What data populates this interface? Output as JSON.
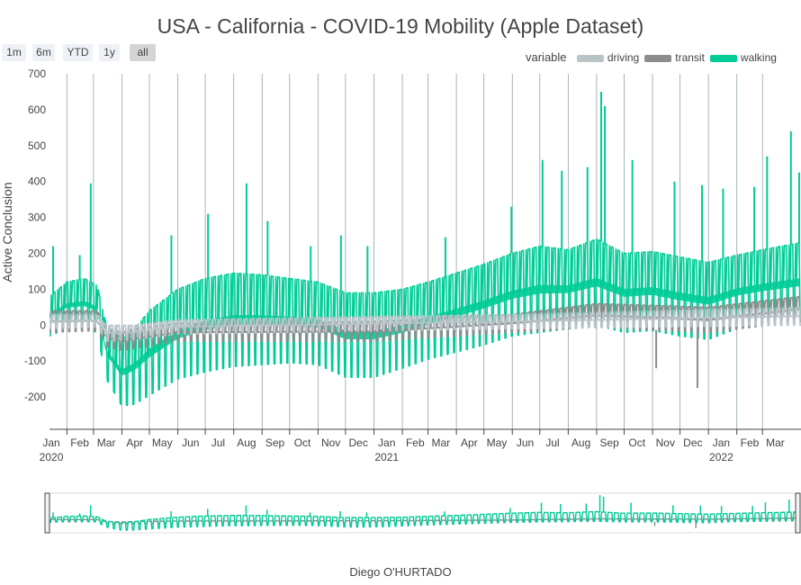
{
  "title": "USA - California - COVID-19 Mobility (Apple Dataset)",
  "range_selector": {
    "buttons": [
      "1m",
      "6m",
      "YTD",
      "1y",
      "all"
    ],
    "active": "all"
  },
  "legend": {
    "title": "variable",
    "items": [
      {
        "name": "driving",
        "color": "#b9c3c8"
      },
      {
        "name": "transit",
        "color": "#8c8c8c"
      },
      {
        "name": "walking",
        "color": "#00cc96"
      }
    ]
  },
  "caption": "Diego O'HURTADO",
  "chart_data": {
    "type": "area",
    "title": "USA - California - COVID-19 Mobility (Apple Dataset)",
    "ylabel": "Active Conclusion",
    "xlabel": "",
    "x_range": [
      "2020-01-13",
      "2022-04-12"
    ],
    "ylim": [
      -290,
      700
    ],
    "yticks": [
      -200,
      -100,
      0,
      100,
      200,
      300,
      400,
      500,
      600,
      700
    ],
    "xticks": [
      {
        "label": "Jan",
        "year": "2020",
        "date": "2020-01-15"
      },
      {
        "label": "Feb",
        "date": "2020-02-15"
      },
      {
        "label": "Mar",
        "date": "2020-03-15"
      },
      {
        "label": "Apr",
        "date": "2020-04-15"
      },
      {
        "label": "May",
        "date": "2020-05-15"
      },
      {
        "label": "Jun",
        "date": "2020-06-15"
      },
      {
        "label": "Jul",
        "date": "2020-07-15"
      },
      {
        "label": "Aug",
        "date": "2020-08-15"
      },
      {
        "label": "Sep",
        "date": "2020-09-15"
      },
      {
        "label": "Oct",
        "date": "2020-10-15"
      },
      {
        "label": "Nov",
        "date": "2020-11-15"
      },
      {
        "label": "Dec",
        "date": "2020-12-15"
      },
      {
        "label": "Jan",
        "year": "2021",
        "date": "2021-01-15"
      },
      {
        "label": "Feb",
        "date": "2021-02-15"
      },
      {
        "label": "Mar",
        "date": "2021-03-15"
      },
      {
        "label": "Apr",
        "date": "2021-04-15"
      },
      {
        "label": "May",
        "date": "2021-05-15"
      },
      {
        "label": "Jun",
        "date": "2021-06-15"
      },
      {
        "label": "Jul",
        "date": "2021-07-15"
      },
      {
        "label": "Aug",
        "date": "2021-08-15"
      },
      {
        "label": "Sep",
        "date": "2021-09-15"
      },
      {
        "label": "Oct",
        "date": "2021-10-15"
      },
      {
        "label": "Nov",
        "date": "2021-11-15"
      },
      {
        "label": "Dec",
        "date": "2021-12-15"
      },
      {
        "label": "Jan",
        "year": "2022",
        "date": "2022-01-15"
      },
      {
        "label": "Feb",
        "date": "2022-02-15"
      },
      {
        "label": "Mar",
        "date": "2022-03-15"
      }
    ],
    "grid": "vertical",
    "legend_position": "top-right",
    "series": [
      {
        "name": "walking",
        "color": "#00cc96",
        "envelope": [
          {
            "x": "2020-01-13",
            "low": -30,
            "high": 80
          },
          {
            "x": "2020-02-01",
            "low": -10,
            "high": 120
          },
          {
            "x": "2020-02-20",
            "low": -10,
            "high": 130
          },
          {
            "x": "2020-03-05",
            "low": -20,
            "high": 110
          },
          {
            "x": "2020-03-15",
            "low": -150,
            "high": 0
          },
          {
            "x": "2020-04-01",
            "low": -225,
            "high": -40
          },
          {
            "x": "2020-04-15",
            "low": -220,
            "high": -10
          },
          {
            "x": "2020-05-01",
            "low": -195,
            "high": 40
          },
          {
            "x": "2020-06-01",
            "low": -150,
            "high": 100
          },
          {
            "x": "2020-07-01",
            "low": -130,
            "high": 130
          },
          {
            "x": "2020-08-01",
            "low": -115,
            "high": 145
          },
          {
            "x": "2020-09-01",
            "low": -110,
            "high": 140
          },
          {
            "x": "2020-10-01",
            "low": -105,
            "high": 130
          },
          {
            "x": "2020-11-01",
            "low": -110,
            "high": 120
          },
          {
            "x": "2020-12-01",
            "low": -145,
            "high": 90
          },
          {
            "x": "2021-01-01",
            "low": -145,
            "high": 90
          },
          {
            "x": "2021-02-01",
            "low": -120,
            "high": 100
          },
          {
            "x": "2021-03-01",
            "low": -95,
            "high": 120
          },
          {
            "x": "2021-04-01",
            "low": -75,
            "high": 145
          },
          {
            "x": "2021-05-01",
            "low": -55,
            "high": 170
          },
          {
            "x": "2021-06-01",
            "low": -30,
            "high": 200
          },
          {
            "x": "2021-07-01",
            "low": -20,
            "high": 220
          },
          {
            "x": "2021-08-01",
            "low": -10,
            "high": 210
          },
          {
            "x": "2021-09-01",
            "low": 0,
            "high": 240
          },
          {
            "x": "2021-10-01",
            "low": -20,
            "high": 200
          },
          {
            "x": "2021-11-01",
            "low": -15,
            "high": 205
          },
          {
            "x": "2021-12-01",
            "low": -30,
            "high": 190
          },
          {
            "x": "2022-01-01",
            "low": -40,
            "high": 175
          },
          {
            "x": "2022-02-01",
            "low": -10,
            "high": 195
          },
          {
            "x": "2022-03-01",
            "low": 0,
            "high": 210
          },
          {
            "x": "2022-04-12",
            "low": 10,
            "high": 230
          }
        ],
        "spikes": [
          {
            "x": "2020-01-17",
            "value": 220
          },
          {
            "x": "2020-02-15",
            "value": 195
          },
          {
            "x": "2020-02-27",
            "value": 395
          },
          {
            "x": "2020-05-25",
            "value": 250
          },
          {
            "x": "2020-07-04",
            "value": 310
          },
          {
            "x": "2020-08-15",
            "value": 395
          },
          {
            "x": "2020-09-07",
            "value": 290
          },
          {
            "x": "2020-10-24",
            "value": 220
          },
          {
            "x": "2020-11-26",
            "value": 250
          },
          {
            "x": "2020-12-25",
            "value": 220
          },
          {
            "x": "2021-03-20",
            "value": 245
          },
          {
            "x": "2021-05-31",
            "value": 330
          },
          {
            "x": "2021-07-04",
            "value": 460
          },
          {
            "x": "2021-07-25",
            "value": 430
          },
          {
            "x": "2021-08-22",
            "value": 440
          },
          {
            "x": "2021-09-06",
            "value": 650
          },
          {
            "x": "2021-09-10",
            "value": 610
          },
          {
            "x": "2021-10-10",
            "value": 460
          },
          {
            "x": "2021-11-25",
            "value": 400
          },
          {
            "x": "2021-12-25",
            "value": 390
          },
          {
            "x": "2022-01-17",
            "value": 380
          },
          {
            "x": "2022-02-20",
            "value": 385
          },
          {
            "x": "2022-03-06",
            "value": 470
          },
          {
            "x": "2022-04-01",
            "value": 540
          },
          {
            "x": "2022-04-10",
            "value": 425
          }
        ]
      },
      {
        "name": "transit",
        "color": "#8c8c8c",
        "envelope": [
          {
            "x": "2020-01-13",
            "low": -20,
            "high": 40
          },
          {
            "x": "2020-03-05",
            "low": -15,
            "high": 40
          },
          {
            "x": "2020-03-15",
            "low": -60,
            "high": -10
          },
          {
            "x": "2020-04-01",
            "low": -70,
            "high": -20
          },
          {
            "x": "2020-04-15",
            "low": -65,
            "high": -10
          },
          {
            "x": "2020-06-01",
            "low": -45,
            "high": 5
          },
          {
            "x": "2021-01-01",
            "low": -45,
            "high": 10
          },
          {
            "x": "2021-06-01",
            "low": -20,
            "high": 30
          },
          {
            "x": "2021-09-01",
            "low": -5,
            "high": 60
          },
          {
            "x": "2022-01-01",
            "low": -20,
            "high": 50
          },
          {
            "x": "2022-04-12",
            "low": 10,
            "high": 80
          }
        ],
        "spikes": [
          {
            "x": "2021-11-05",
            "value": -120
          },
          {
            "x": "2021-12-20",
            "value": -175
          }
        ]
      },
      {
        "name": "driving",
        "color": "#b9c3c8",
        "envelope": [
          {
            "x": "2020-01-13",
            "low": -10,
            "high": 30
          },
          {
            "x": "2020-03-05",
            "low": -5,
            "high": 30
          },
          {
            "x": "2020-03-15",
            "low": -45,
            "high": 0
          },
          {
            "x": "2020-04-15",
            "low": -40,
            "high": 0
          },
          {
            "x": "2020-06-01",
            "low": -25,
            "high": 15
          },
          {
            "x": "2021-06-01",
            "low": -10,
            "high": 30
          },
          {
            "x": "2022-04-12",
            "low": 0,
            "high": 50
          }
        ],
        "spikes": []
      }
    ]
  }
}
